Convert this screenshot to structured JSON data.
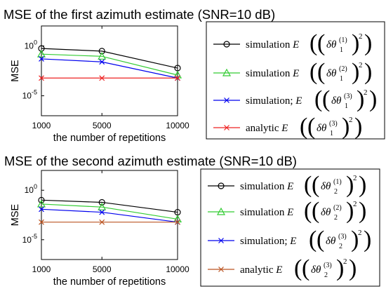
{
  "chart_data": [
    {
      "type": "line",
      "title": "MSE of the first azimuth estimate (SNR=10 dB)",
      "xlabel": "the number of repetitions",
      "ylabel": "MSE",
      "x": [
        1000,
        5000,
        10000
      ],
      "x_tick_labels": [
        "1000",
        "5000",
        "10000"
      ],
      "y_scale": "log",
      "ylim_exponent": [
        -7,
        2
      ],
      "y_ticks": [
        {
          "base": "10",
          "exp": "0",
          "exponent": 0
        },
        {
          "base": "10",
          "exp": "-5",
          "exponent": -5
        }
      ],
      "grid": false,
      "legend_position": "right",
      "series": [
        {
          "name": "simulation",
          "legend_math": "E((δθ1(1))²)",
          "sup": "(1)",
          "sub": "1",
          "color": "#000000",
          "marker": "circle",
          "values": [
            0.55,
            0.3,
            0.006
          ]
        },
        {
          "name": "simulation",
          "legend_math": "E((δθ1(2))²)",
          "sup": "(2)",
          "sub": "1",
          "color": "#33cc33",
          "marker": "triangle",
          "values": [
            0.15,
            0.09,
            0.0012
          ]
        },
        {
          "name": "simulation;",
          "legend_math": "E((δθ1(3))²)",
          "sup": "(3)",
          "sub": "1",
          "color": "#0000ee",
          "marker": "x",
          "values": [
            0.05,
            0.025,
            0.0006
          ]
        },
        {
          "name": "analytic",
          "legend_math": "E((δθ1(3))²)",
          "sup": "(3)",
          "sub": "1",
          "color": "#ee2222",
          "marker": "x",
          "values": [
            0.0006,
            0.0006,
            0.0006
          ]
        }
      ]
    },
    {
      "type": "line",
      "title": "MSE of the second azimuth estimate (SNR=10 dB)",
      "xlabel": "the number of repetitions",
      "ylabel": "MSE",
      "x": [
        1000,
        5000,
        10000
      ],
      "x_tick_labels": [
        "1000",
        "5000",
        "10000"
      ],
      "y_scale": "log",
      "ylim_exponent": [
        -7,
        2
      ],
      "y_ticks": [
        {
          "base": "10",
          "exp": "0",
          "exponent": 0
        },
        {
          "base": "10",
          "exp": "-5",
          "exponent": -5
        }
      ],
      "grid": false,
      "legend_position": "right",
      "series": [
        {
          "name": "simulation",
          "legend_math": "E((δθ2(1))²)",
          "sup": "(1)",
          "sub": "2",
          "color": "#000000",
          "marker": "circle",
          "values": [
            0.1,
            0.06,
            0.006
          ]
        },
        {
          "name": "simulation",
          "legend_math": "E((δθ2(2))²)",
          "sup": "(2)",
          "sub": "2",
          "color": "#33cc33",
          "marker": "triangle",
          "values": [
            0.04,
            0.02,
            0.0012
          ]
        },
        {
          "name": "simulation;",
          "legend_math": "E((δθ2(3))²)",
          "sup": "(3)",
          "sub": "2",
          "color": "#0000ee",
          "marker": "x",
          "values": [
            0.012,
            0.006,
            0.0006
          ]
        },
        {
          "name": "analytic",
          "legend_math": "E((δθ2(3))²)",
          "sup": "(3)",
          "sub": "2",
          "color": "#bb5522",
          "marker": "x",
          "values": [
            0.0006,
            0.0006,
            0.0006
          ]
        }
      ]
    }
  ]
}
